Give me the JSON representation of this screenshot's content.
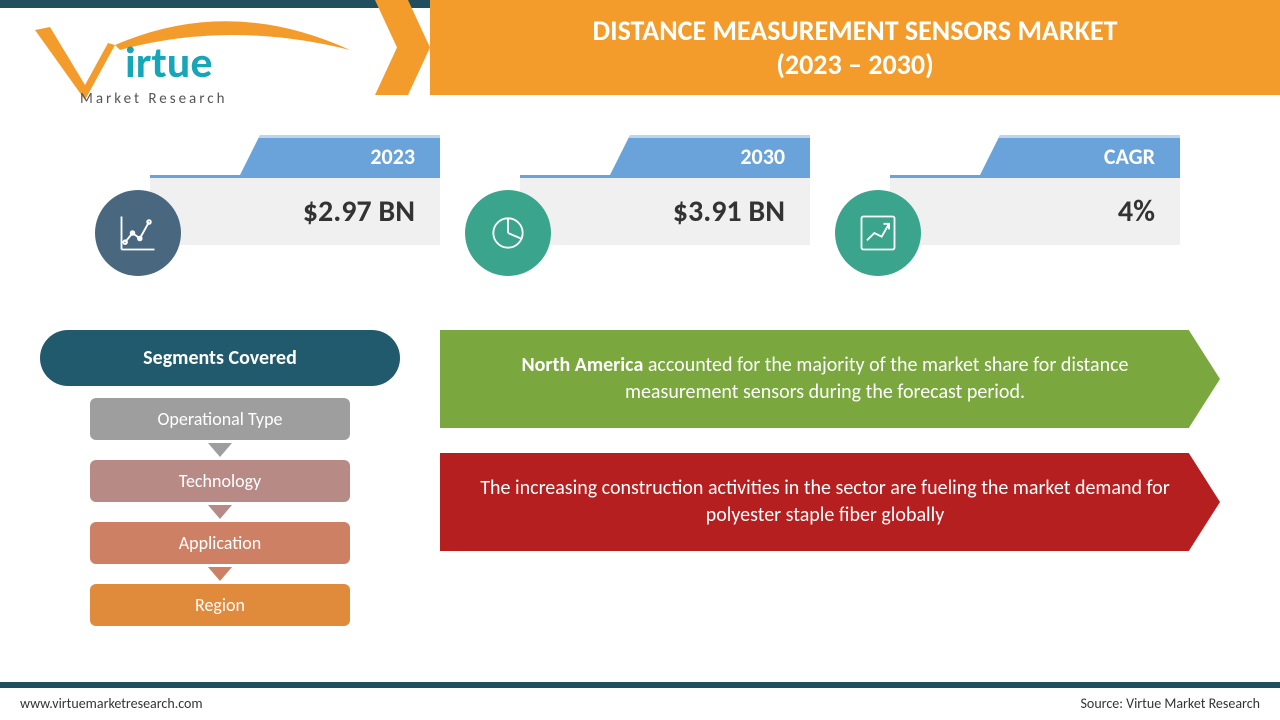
{
  "brand": {
    "name": "Virtue",
    "subline": "Market Research",
    "accent_color": "#15a6b8",
    "swoosh_color": "#f39c2c",
    "text_color": "#555555"
  },
  "title": {
    "line1": "DISTANCE MEASUREMENT SENSORS MARKET",
    "line2": "(2023 – 2030)",
    "bg": "#f39c2c",
    "color": "#ffffff",
    "fontsize": 28
  },
  "stats": [
    {
      "label": "2023",
      "value": "$2.97 BN",
      "icon": "line-chart",
      "circle_color": "#49687f"
    },
    {
      "label": "2030",
      "value": "$3.91 BN",
      "icon": "pie-chart",
      "circle_color": "#3aa58c"
    },
    {
      "label": "CAGR",
      "value": "4%",
      "icon": "growth-chart",
      "circle_color": "#3aa58c"
    }
  ],
  "stat_style": {
    "tab_bg": "#6aa2da",
    "tab_border": "#bcd4ec",
    "body_bg": "#f0f0f0",
    "body_text": "#333333",
    "tab_text": "#ffffff",
    "label_fontsize": 22,
    "value_fontsize": 30
  },
  "segments": {
    "title": "Segments Covered",
    "title_bg": "#215a6c",
    "items": [
      {
        "label": "Operational Type",
        "bg": "#9e9e9e"
      },
      {
        "label": "Technology",
        "bg": "#b78a86"
      },
      {
        "label": "Application",
        "bg": "#cd8064"
      },
      {
        "label": "Region",
        "bg": "#e08a3b"
      }
    ],
    "arrow_colors": [
      "#9e9e9e",
      "#b78a86",
      "#cd8064"
    ]
  },
  "callouts": [
    {
      "bg": "#7aa83e",
      "html_parts": [
        "",
        "North America",
        " accounted for the majority of the market share for distance measurement sensors during the forecast period."
      ],
      "bold_index": 1
    },
    {
      "bg": "#b51f1f",
      "html_parts": [
        "The increasing construction activities in the sector are fueling the market demand for polyester staple fiber globally"
      ],
      "bold_index": -1
    }
  ],
  "footer": {
    "left": "www.virtuemarketresearch.com",
    "right": "Source: Virtue Market Research",
    "bar_color": "#1f4e5f"
  }
}
